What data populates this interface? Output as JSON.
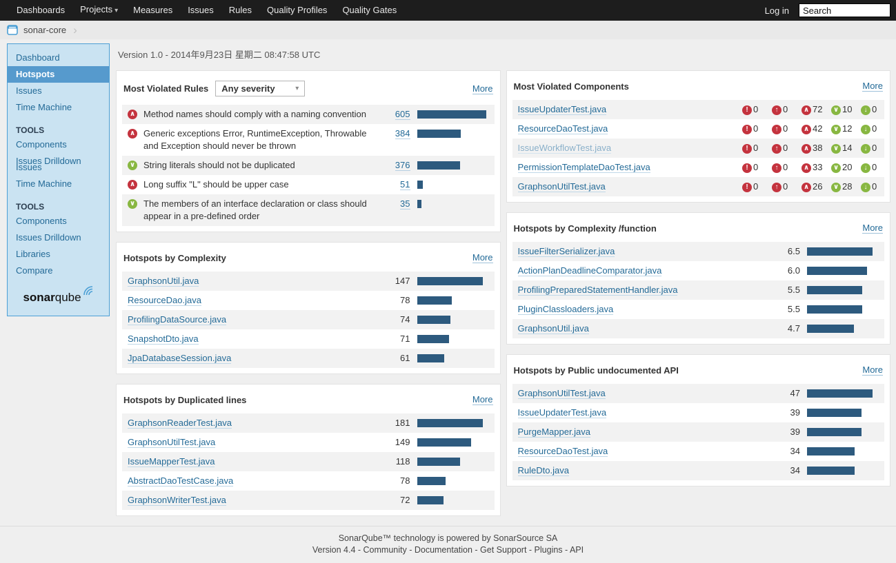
{
  "nav": {
    "items": [
      "Dashboards",
      "Projects",
      "Measures",
      "Issues",
      "Rules",
      "Quality Profiles",
      "Quality Gates"
    ],
    "login": "Log in",
    "search_value": "Search"
  },
  "breadcrumb": {
    "project": "sonar-core"
  },
  "icons": {
    "blocker": "!",
    "critical": "↑",
    "major": "∧",
    "minor": "∨",
    "info": "↓",
    "caret_down": "▾",
    "chevron_right": "›",
    "select_arrow": "▾"
  },
  "sidebar": {
    "items": {
      "dashboard": "Dashboard",
      "hotspots": "Hotspots",
      "issues": "Issues",
      "time_machine": "Time Machine",
      "tools1": "TOOLS",
      "components1": "Components",
      "issues_drilldown1": "Issues Drilldown",
      "issues_ghost": "Issues",
      "time_machine2": "Time Machine",
      "tools2": "TOOLS",
      "components2": "Components",
      "issues_drilldown2": "Issues Drilldown",
      "libraries": "Libraries",
      "compare": "Compare"
    },
    "logo_bold": "sonar",
    "logo_rest": "qube"
  },
  "page": {
    "version_line": "Version 1.0 - 2014年9月23日 星期二 08:47:58 UTC"
  },
  "panels": {
    "rules": {
      "title": "Most Violated Rules",
      "severity_filter": "Any severity",
      "more": "More",
      "rows": [
        {
          "text": "Method names should comply with a naming convention",
          "count": "605",
          "bar": 100
        },
        {
          "text": "Generic exceptions Error, RuntimeException, Throwable and Exception should never be thrown",
          "count": "384",
          "bar": 63
        },
        {
          "text": "String literals should not be duplicated",
          "count": "376",
          "bar": 62
        },
        {
          "text": "Long suffix \"L\" should be upper case",
          "count": "51",
          "bar": 8
        },
        {
          "text": "The members of an interface declaration or class should appear in a pre-defined order",
          "count": "35",
          "bar": 6
        }
      ]
    },
    "complexity": {
      "title": "Hotspots by Complexity",
      "more": "More",
      "rows": [
        {
          "name": "GraphsonUtil.java",
          "value": "147",
          "bar": 95
        },
        {
          "name": "ResourceDao.java",
          "value": "78",
          "bar": 50
        },
        {
          "name": "ProfilingDataSource.java",
          "value": "74",
          "bar": 48
        },
        {
          "name": "SnapshotDto.java",
          "value": "71",
          "bar": 46
        },
        {
          "name": "JpaDatabaseSession.java",
          "value": "61",
          "bar": 39
        }
      ]
    },
    "dup": {
      "title": "Hotspots by Duplicated lines",
      "more": "More",
      "rows": [
        {
          "name": "GraphsonReaderTest.java",
          "value": "181",
          "bar": 95
        },
        {
          "name": "GraphsonUtilTest.java",
          "value": "149",
          "bar": 78
        },
        {
          "name": "IssueMapperTest.java",
          "value": "118",
          "bar": 62
        },
        {
          "name": "AbstractDaoTestCase.java",
          "value": "78",
          "bar": 41
        },
        {
          "name": "GraphsonWriterTest.java",
          "value": "72",
          "bar": 38
        }
      ]
    },
    "components": {
      "title": "Most Violated Components",
      "more": "More",
      "rows": [
        {
          "name": "IssueUpdaterTest.java",
          "counts": [
            "0",
            "0",
            "72",
            "10",
            "0"
          ]
        },
        {
          "name": "ResourceDaoTest.java",
          "counts": [
            "0",
            "0",
            "42",
            "12",
            "0"
          ]
        },
        {
          "name": "IssueWorkflowTest.java",
          "counts": [
            "0",
            "0",
            "38",
            "14",
            "0"
          ]
        },
        {
          "name": "PermissionTemplateDaoTest.java",
          "counts": [
            "0",
            "0",
            "33",
            "20",
            "0"
          ]
        },
        {
          "name": "GraphsonUtilTest.java",
          "counts": [
            "0",
            "0",
            "26",
            "28",
            "0"
          ]
        }
      ]
    },
    "func": {
      "title": "Hotspots by Complexity /function",
      "more": "More",
      "rows": [
        {
          "name": "IssueFilterSerializer.java",
          "value": "6.5",
          "bar": 95
        },
        {
          "name": "ActionPlanDeadlineComparator.java",
          "value": "6.0",
          "bar": 87
        },
        {
          "name": "ProfilingPreparedStatementHandler.java",
          "value": "5.5",
          "bar": 80
        },
        {
          "name": "PluginClassloaders.java",
          "value": "5.5",
          "bar": 80
        },
        {
          "name": "GraphsonUtil.java",
          "value": "4.7",
          "bar": 68
        }
      ]
    },
    "api": {
      "title": "Hotspots by Public undocumented API",
      "more": "More",
      "rows": [
        {
          "name": "GraphsonUtilTest.java",
          "value": "47",
          "bar": 95
        },
        {
          "name": "IssueUpdaterTest.java",
          "value": "39",
          "bar": 79
        },
        {
          "name": "PurgeMapper.java",
          "value": "39",
          "bar": 79
        },
        {
          "name": "ResourceDaoTest.java",
          "value": "34",
          "bar": 69
        },
        {
          "name": "RuleDto.java",
          "value": "34",
          "bar": 69
        }
      ]
    }
  },
  "footer": {
    "line1": "SonarQube™ technology is powered by SonarSource SA",
    "line2": [
      "Version 4.4",
      "Community",
      "Documentation",
      "Get Support",
      "Plugins",
      "API"
    ]
  }
}
